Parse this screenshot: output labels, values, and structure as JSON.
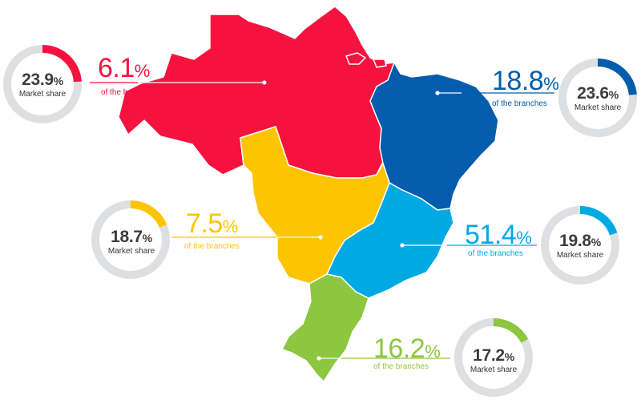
{
  "colors": {
    "north": "#f5123f",
    "northeast": "#035dac",
    "centerwest": "#fdc500",
    "southeast": "#00a9e2",
    "south": "#8dc63f",
    "track": "#dedfe1"
  },
  "regions": [
    {
      "key": "north",
      "color": "#f5123f",
      "branches_value": "6.1",
      "percent_sign": "%",
      "branches_caption": "of the branches",
      "market_share_value": "23.9",
      "market_share_percent": "%",
      "market_share_caption": "Market share",
      "market_share_fraction": 0.239
    },
    {
      "key": "northeast",
      "color": "#035dac",
      "branches_value": "18.8",
      "percent_sign": "%",
      "branches_caption": "of the branches",
      "market_share_value": "23.6",
      "market_share_percent": "%",
      "market_share_caption": "Market share",
      "market_share_fraction": 0.236
    },
    {
      "key": "centerwest",
      "color": "#fdc500",
      "branches_value": "7.5",
      "percent_sign": "%",
      "branches_caption": "of the branches",
      "market_share_value": "18.7",
      "market_share_percent": "%",
      "market_share_caption": "Market share",
      "market_share_fraction": 0.187
    },
    {
      "key": "southeast",
      "color": "#00a9e2",
      "branches_value": "51.4",
      "percent_sign": "%",
      "branches_caption": "of the branches",
      "market_share_value": "19.8",
      "market_share_percent": "%",
      "market_share_caption": "Market share",
      "market_share_fraction": 0.198
    },
    {
      "key": "south",
      "color": "#8dc63f",
      "branches_value": "16.2",
      "percent_sign": "%",
      "branches_caption": "of the branches",
      "market_share_value": "17.2",
      "market_share_percent": "%",
      "market_share_caption": "Market share",
      "market_share_fraction": 0.172
    }
  ]
}
